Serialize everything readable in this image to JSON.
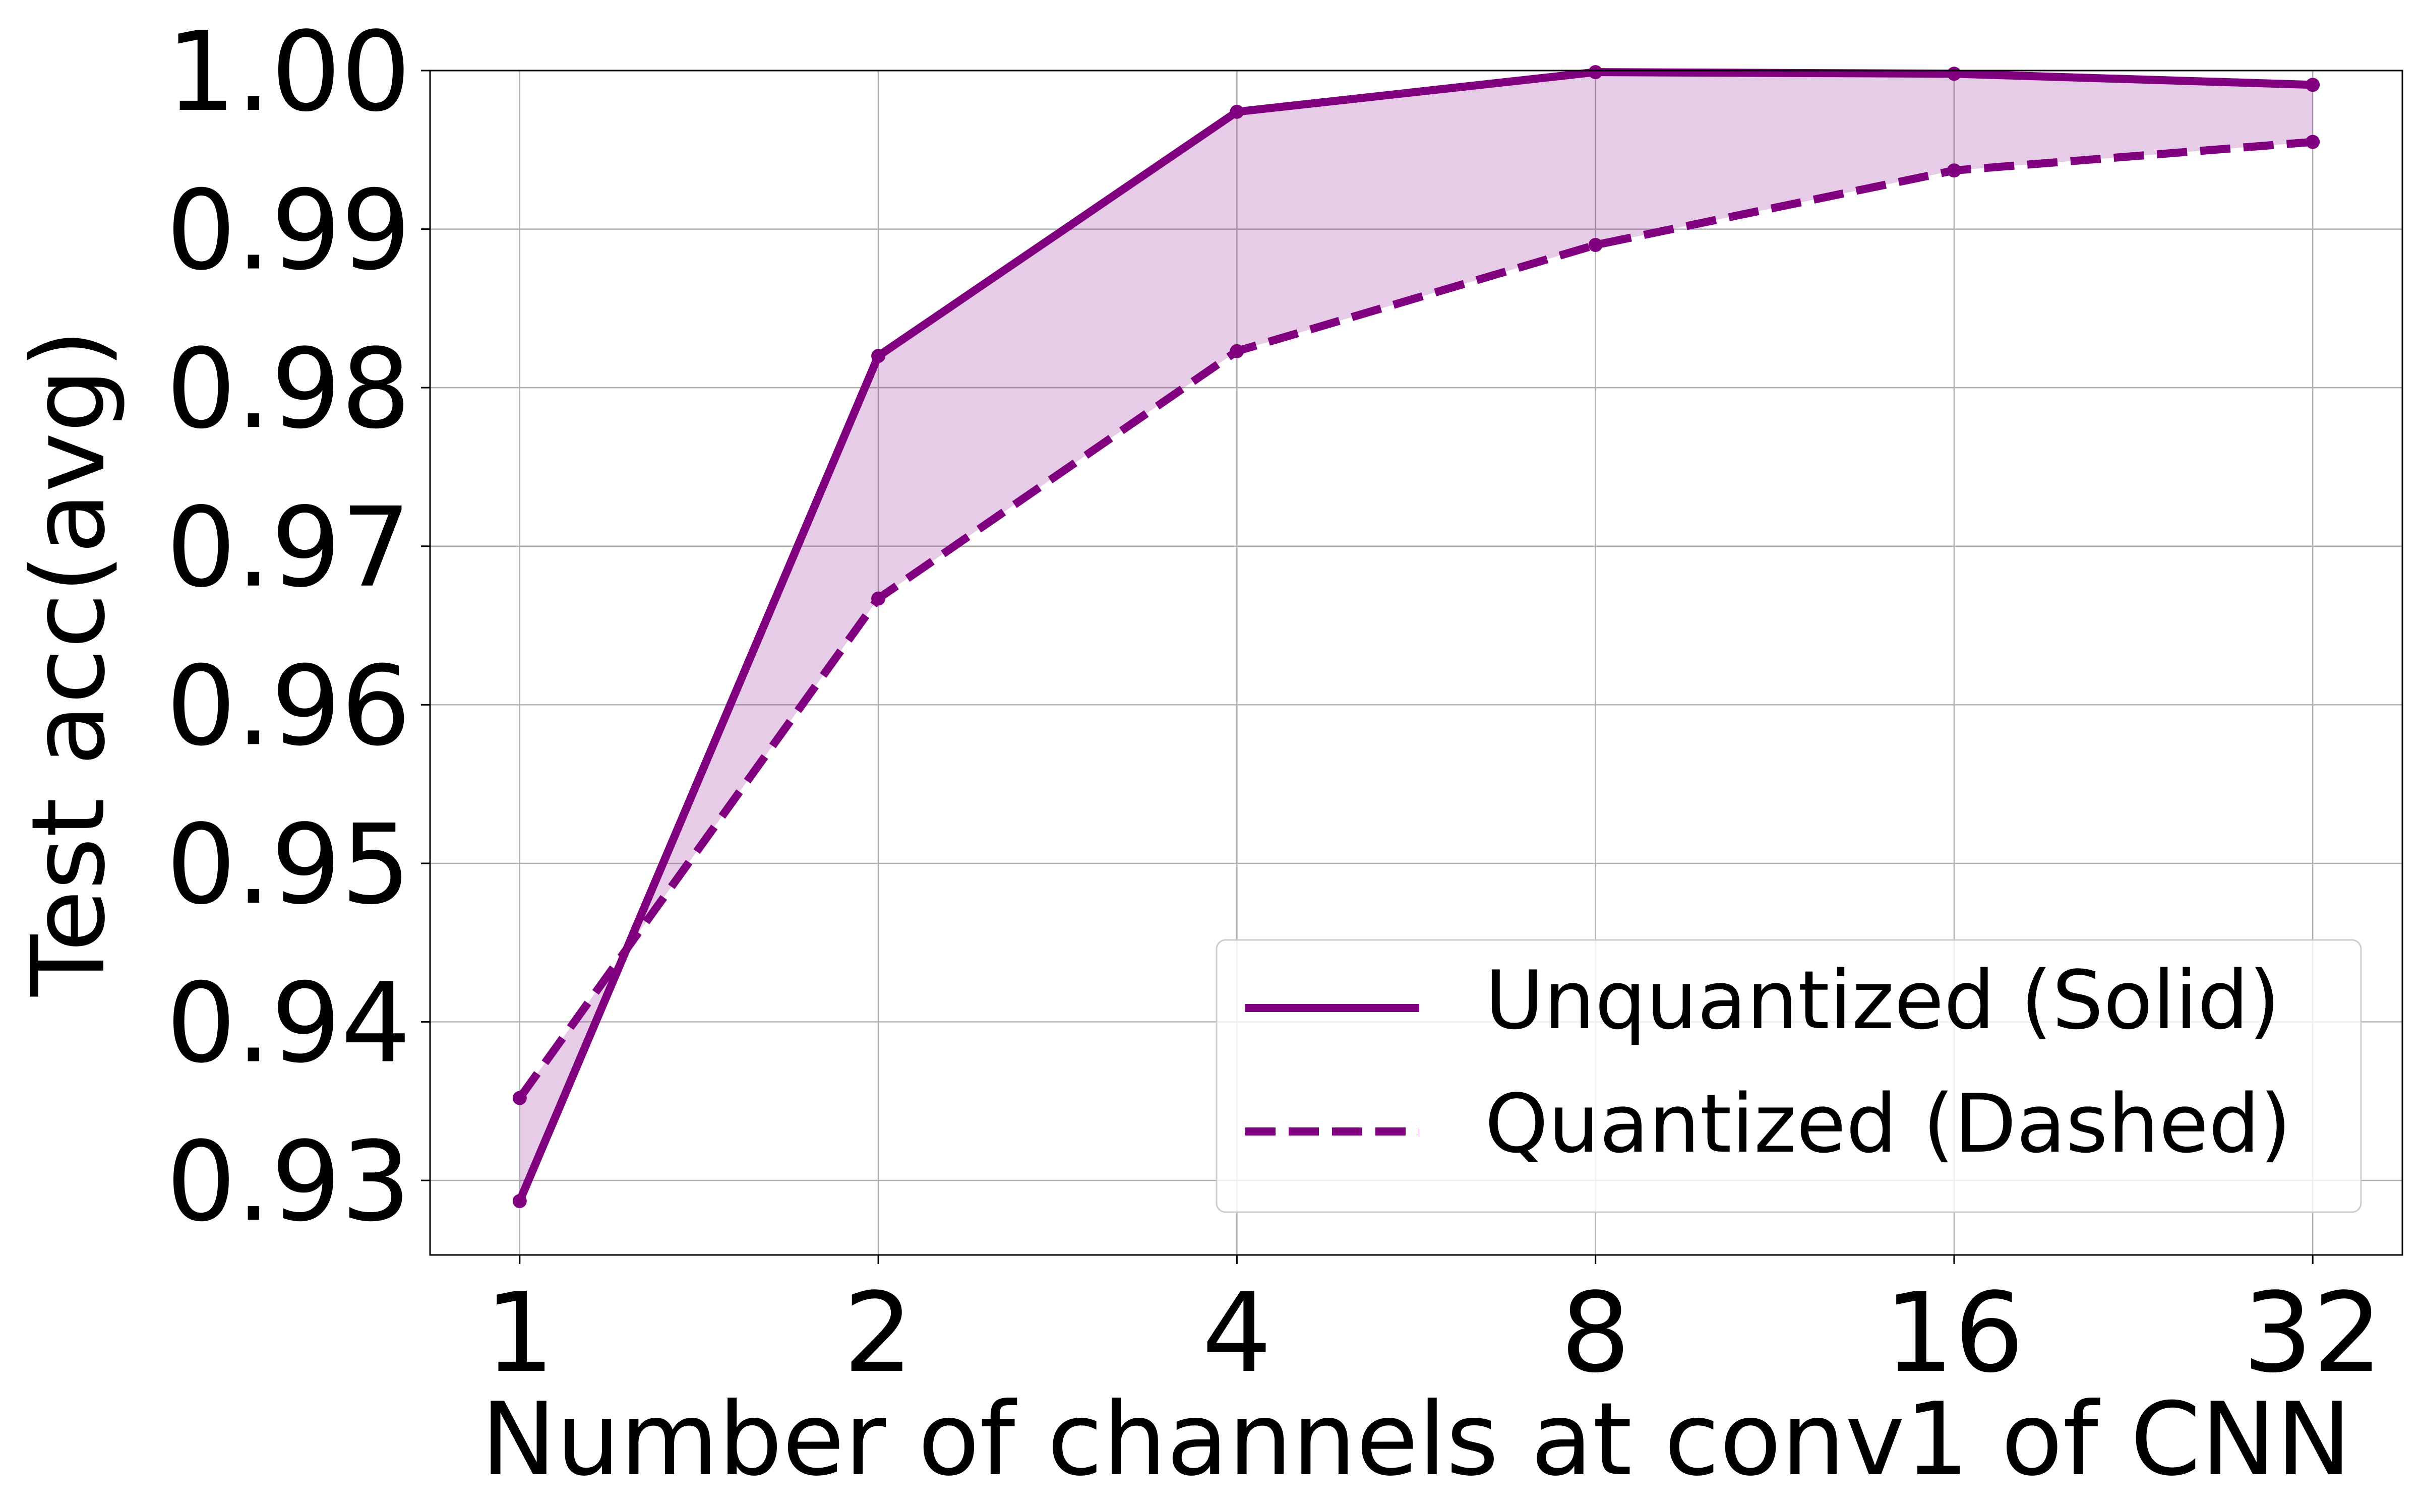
{
  "chart_data": {
    "type": "line",
    "title": "",
    "xlabel": "Number of channels at conv1 of CNN",
    "ylabel": "Test acc(avg)",
    "x_scale": "log2",
    "categories": [
      "1",
      "2",
      "4",
      "8",
      "16",
      "32"
    ],
    "x": [
      1,
      2,
      4,
      8,
      16,
      32
    ],
    "ylim": [
      0.9253,
      1.0
    ],
    "yticks": [
      "0.93",
      "0.94",
      "0.95",
      "0.96",
      "0.97",
      "0.98",
      "0.99",
      "1.00"
    ],
    "grid": true,
    "legend_position": "lower-right",
    "fill_between_series": true,
    "series": [
      {
        "name": "Unquantized (Solid)",
        "style": "solid",
        "color": "#800080",
        "values": [
          0.9287,
          0.982,
          0.9974,
          0.9999,
          0.9998,
          0.9991
        ]
      },
      {
        "name": "Quantized (Dashed)",
        "style": "dashed",
        "color": "#800080",
        "values": [
          0.9352,
          0.9667,
          0.9823,
          0.989,
          0.9937,
          0.9955
        ]
      }
    ],
    "fill_color": "#800080"
  }
}
